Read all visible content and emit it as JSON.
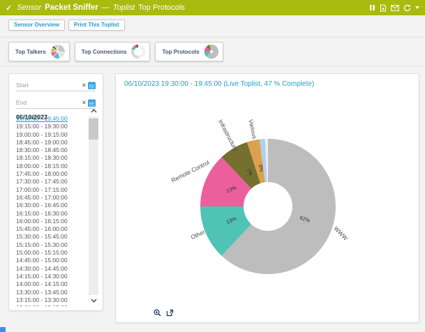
{
  "header": {
    "check_icon": "✓",
    "sensor_label": "Sensor",
    "sensor_name": "Packet Sniffer",
    "separator": "—",
    "toplist_label": "Toplist",
    "toplist_name": "Top Protocols",
    "icons": [
      "pause-icon",
      "save-report-icon",
      "email-icon",
      "refresh-icon",
      "dropdown-caret-icon"
    ],
    "bar_color": "#a9ba10"
  },
  "toolbar": {
    "buttons": [
      "Sensor Overview",
      "Print This Toplist"
    ],
    "link_color": "#1e9dd3"
  },
  "tabs": [
    {
      "label": "Top Talkers",
      "icon": "pie-chart-icon"
    },
    {
      "label": "Top Connections",
      "icon": "pie-chart-icon"
    },
    {
      "label": "Top Protocols",
      "icon": "pie-chart-icon",
      "selected": true
    }
  ],
  "filter_panel": {
    "start_placeholder": "Start",
    "end_placeholder": "End",
    "clear_icon": "×",
    "date_header": "06/10/2023",
    "selected_index": 0,
    "selected_color": "#1d9bd0",
    "intervals": [
      "19:30:00 - 19:45:00",
      "19:15:00 - 19:30:00",
      "19:00:00 - 19:15:00",
      "18:45:00 - 19:00:00",
      "18:30:00 - 18:45:00",
      "18:15:00 - 18:30:00",
      "18:00:00 - 18:15:00",
      "17:45:00 - 18:00:00",
      "17:30:00 - 17:45:00",
      "17:00:00 - 17:15:00",
      "16:45:00 - 17:00:00",
      "16:30:00 - 16:45:00",
      "16:15:00 - 16:30:00",
      "16:00:00 - 16:15:00",
      "15:45:00 - 16:00:00",
      "15:30:00 - 15:45:00",
      "15:15:00 - 15:30:00",
      "15:00:00 - 15:15:00",
      "14:45:00 - 15:00:00",
      "14:30:00 - 14:45:00",
      "14:15:00 - 14:30:00",
      "14:00:00 - 14:15:00",
      "13:30:00 - 13:45:00",
      "13:15:00 - 13:30:00",
      "13:00:00 - 13:15:00"
    ]
  },
  "chart_panel": {
    "title": "06/10/2023 19:30:00 - 19:45:00 (Live Toplist, 47 % Complete)",
    "footer_icons": [
      "zoom-in-icon",
      "open-external-icon"
    ]
  },
  "chart_data": {
    "type": "pie",
    "donut": true,
    "title": "06/10/2023 19:30:00 - 19:45:00 (Live Toplist, 47 % Complete)",
    "labels": [
      "WWW",
      "Other",
      "Remote Control",
      "Infrastructure",
      "Various",
      "",
      ""
    ],
    "values": [
      62,
      13,
      13,
      7,
      3,
      1.3,
      0.7
    ],
    "percent_labels": [
      "62%",
      "13%",
      "13%",
      "7%",
      "3%",
      "",
      ""
    ],
    "colors": [
      "#bdbdbd",
      "#4fc4b5",
      "#ec5f9d",
      "#76702f",
      "#dda04c",
      "#aed0ea",
      "#ededed"
    ],
    "start_angle": "top",
    "direction": "clockwise",
    "legend": "none"
  }
}
